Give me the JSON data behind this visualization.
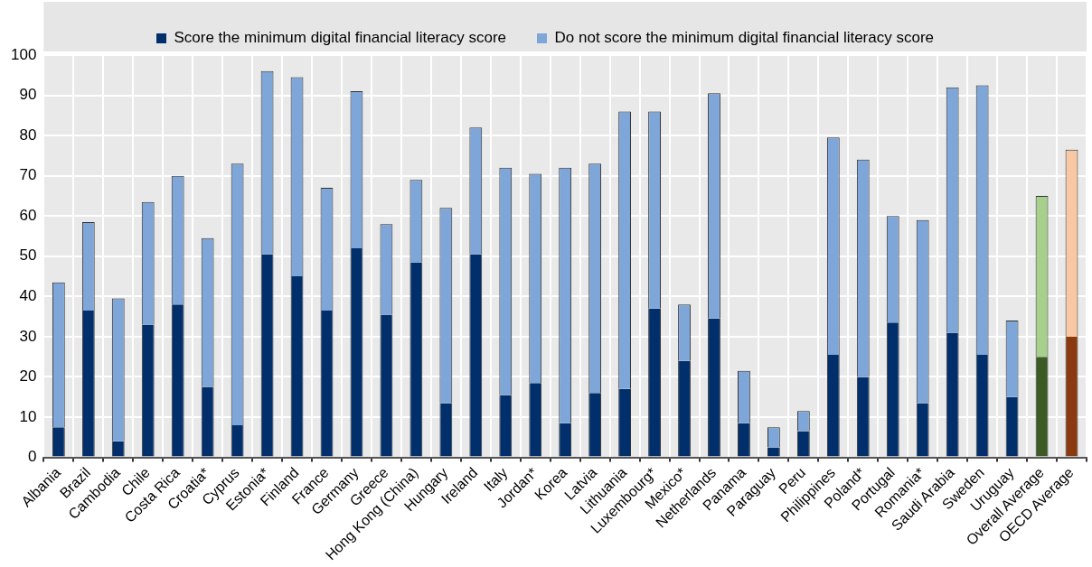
{
  "chart_data": {
    "type": "bar",
    "stacked": true,
    "grid": true,
    "legend": "top",
    "categories": [
      "Albania",
      "Brazil",
      "Cambodia",
      "Chile",
      "Costa Rica",
      "Croatia*",
      "Cyprus",
      "Estonia*",
      "Finland",
      "France",
      "Germany",
      "Greece",
      "Hong Kong (China)",
      "Hungary",
      "Ireland",
      "Italy",
      "Jordan*",
      "Korea",
      "Latvia",
      "Lithuania",
      "Luxembourg*",
      "Mexico*",
      "Netherlands",
      "Panama",
      "Paraguay",
      "Peru",
      "Philippines",
      "Poland*",
      "Portugal",
      "Romania*",
      "Saudi Arabia",
      "Sweden",
      "Uruguay",
      "Overall Average",
      "OECD Average"
    ],
    "series": [
      {
        "name": "Score the minimum digital financial literacy score",
        "color": "#002f6c",
        "colors": [
          "#002f6c",
          "#002f6c",
          "#002f6c",
          "#002f6c",
          "#002f6c",
          "#002f6c",
          "#002f6c",
          "#002f6c",
          "#002f6c",
          "#002f6c",
          "#002f6c",
          "#002f6c",
          "#002f6c",
          "#002f6c",
          "#002f6c",
          "#002f6c",
          "#002f6c",
          "#002f6c",
          "#002f6c",
          "#002f6c",
          "#002f6c",
          "#002f6c",
          "#002f6c",
          "#002f6c",
          "#002f6c",
          "#002f6c",
          "#002f6c",
          "#002f6c",
          "#002f6c",
          "#002f6c",
          "#002f6c",
          "#002f6c",
          "#002f6c",
          "#3b5a24",
          "#8b3a0f"
        ],
        "values": [
          7.5,
          36.5,
          4,
          33,
          38,
          17.5,
          8,
          50.5,
          45,
          36.5,
          52,
          35.5,
          48.5,
          13.5,
          50.5,
          15.5,
          18.5,
          8.5,
          16,
          17,
          37,
          24,
          34.5,
          8.5,
          2.5,
          6.5,
          25.5,
          20,
          33.5,
          13.5,
          31,
          25.5,
          15,
          25,
          30
        ]
      },
      {
        "name": "Do not score the minimum digital financial literacy score",
        "color": "#7ea6d9",
        "colors": [
          "#7ea6d9",
          "#7ea6d9",
          "#7ea6d9",
          "#7ea6d9",
          "#7ea6d9",
          "#7ea6d9",
          "#7ea6d9",
          "#7ea6d9",
          "#7ea6d9",
          "#7ea6d9",
          "#7ea6d9",
          "#7ea6d9",
          "#7ea6d9",
          "#7ea6d9",
          "#7ea6d9",
          "#7ea6d9",
          "#7ea6d9",
          "#7ea6d9",
          "#7ea6d9",
          "#7ea6d9",
          "#7ea6d9",
          "#7ea6d9",
          "#7ea6d9",
          "#7ea6d9",
          "#7ea6d9",
          "#7ea6d9",
          "#7ea6d9",
          "#7ea6d9",
          "#7ea6d9",
          "#7ea6d9",
          "#7ea6d9",
          "#7ea6d9",
          "#7ea6d9",
          "#a6d08c",
          "#f7c8a3"
        ],
        "values": [
          36,
          22,
          35.5,
          30.5,
          32,
          37,
          65,
          45.5,
          49.5,
          30.5,
          39,
          22.5,
          20.5,
          48.5,
          31.5,
          56.5,
          52,
          63.5,
          57,
          69,
          49,
          14,
          56,
          13,
          5,
          5,
          54,
          54,
          26.5,
          45.5,
          61,
          67,
          19,
          40,
          46.5
        ]
      }
    ],
    "ylim": [
      0,
      100
    ],
    "yticks": [
      0,
      10,
      20,
      30,
      40,
      50,
      60,
      70,
      80,
      90,
      100
    ]
  }
}
